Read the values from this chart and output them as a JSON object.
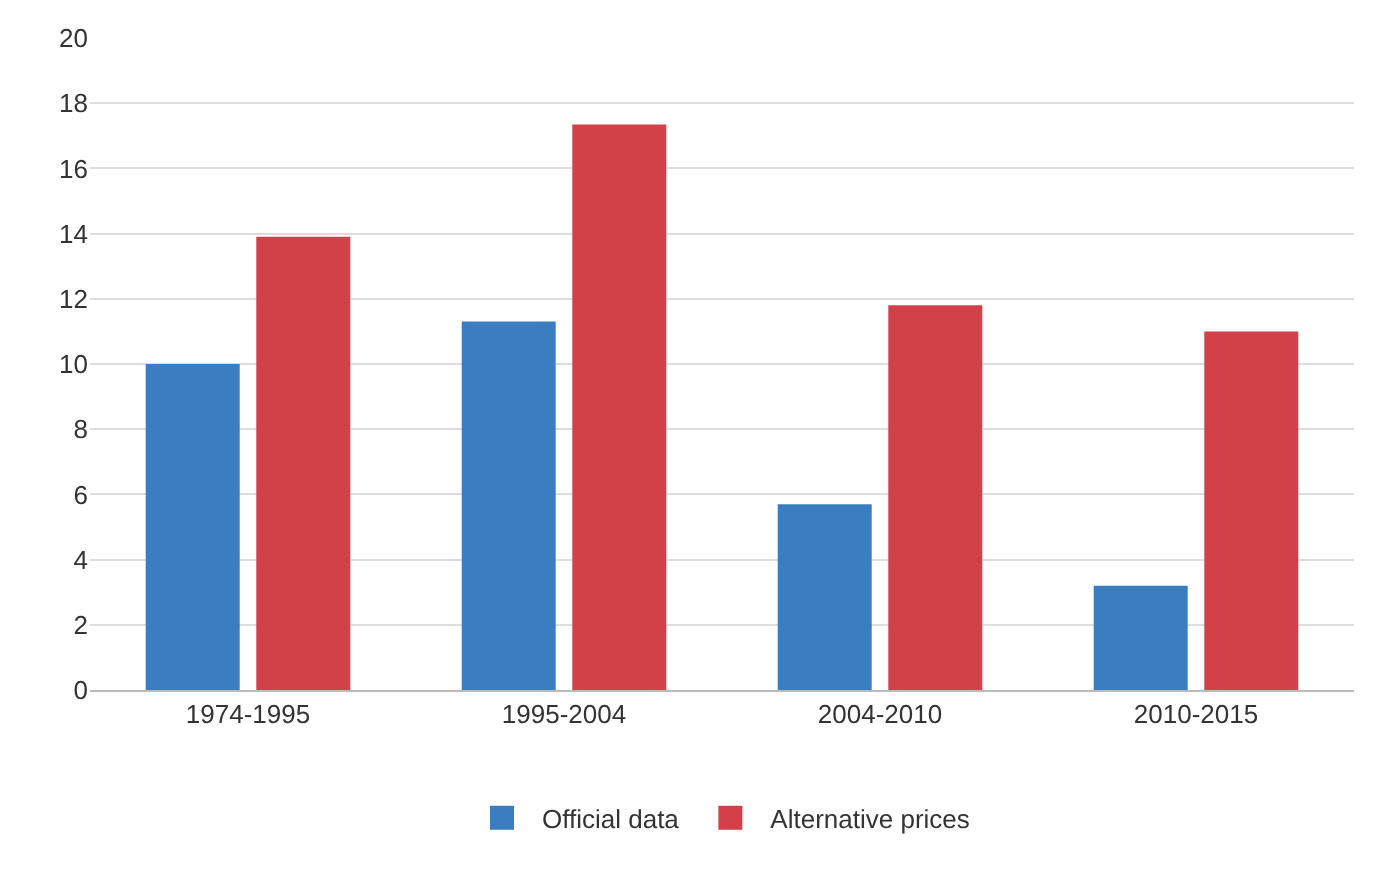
{
  "chart_data": {
    "type": "bar",
    "categories": [
      "1974-1995",
      "1995-2004",
      "2004-2010",
      "2010-2015"
    ],
    "series": [
      {
        "name": "Official data",
        "color": "#3a7dc0",
        "values": [
          10.0,
          11.3,
          5.7,
          3.2
        ]
      },
      {
        "name": "Alternative prices",
        "color": "#d2404a",
        "values": [
          13.9,
          17.35,
          11.8,
          11.0
        ]
      }
    ],
    "ylim": [
      0,
      20
    ],
    "yticks": [
      0,
      2,
      4,
      6,
      8,
      10,
      12,
      14,
      16,
      18,
      20
    ],
    "grid": "y",
    "legend": "bottom"
  }
}
